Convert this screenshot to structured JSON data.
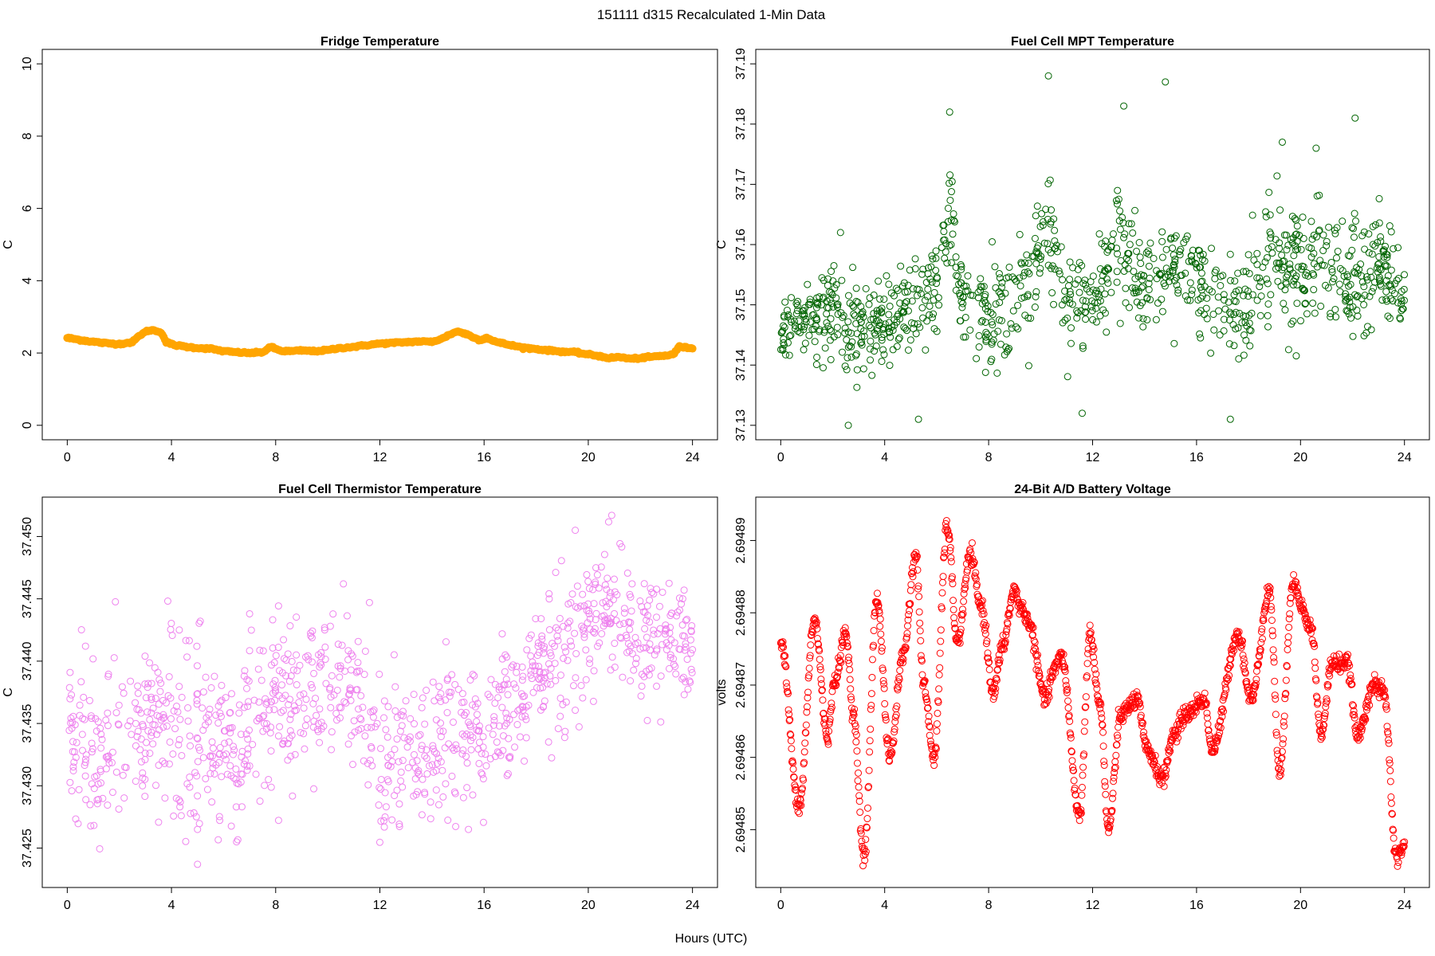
{
  "figure_title": "151111   d315   Recalculated 1-Min Data",
  "x_axis_label": "Hours (UTC)",
  "chart_data": [
    {
      "id": "fridge",
      "type": "scatter",
      "title": "Fridge Temperature",
      "xlabel": "",
      "ylabel": "C",
      "color": "#ffa500",
      "marker": "filled",
      "xlim": [
        0,
        24
      ],
      "ylim": [
        0,
        10
      ],
      "xticks": [
        0,
        4,
        8,
        12,
        16,
        20,
        24
      ],
      "yticks": [
        0,
        2,
        4,
        6,
        8,
        10
      ],
      "ytick_labels": [
        "0",
        "2",
        "4",
        "6",
        "8",
        "10"
      ],
      "trace": {
        "x": [
          0,
          0.5,
          1,
          1.5,
          2,
          2.5,
          2.8,
          3.1,
          3.3,
          3.6,
          3.8,
          4.1,
          4.6,
          5,
          5.5,
          6,
          6.5,
          7,
          7.5,
          7.8,
          8.2,
          8.6,
          9,
          9.5,
          10,
          10.5,
          11,
          11.5,
          12,
          12.5,
          13,
          13.5,
          14,
          14.4,
          14.7,
          15,
          15.4,
          15.8,
          16.1,
          16.5,
          17,
          17.5,
          18,
          18.5,
          19,
          19.5,
          20,
          20.4,
          20.8,
          21.2,
          21.6,
          22,
          22.5,
          23,
          23.3,
          23.5,
          23.7,
          24
        ],
        "y": [
          2.42,
          2.36,
          2.31,
          2.27,
          2.25,
          2.3,
          2.5,
          2.62,
          2.63,
          2.58,
          2.3,
          2.22,
          2.17,
          2.14,
          2.12,
          2.05,
          2.02,
          2.0,
          2.02,
          2.17,
          2.06,
          2.05,
          2.07,
          2.05,
          2.08,
          2.14,
          2.17,
          2.22,
          2.26,
          2.28,
          2.3,
          2.32,
          2.31,
          2.4,
          2.52,
          2.6,
          2.5,
          2.36,
          2.42,
          2.3,
          2.22,
          2.15,
          2.11,
          2.07,
          2.04,
          2.02,
          1.96,
          1.92,
          1.86,
          1.89,
          1.84,
          1.86,
          1.9,
          1.93,
          1.98,
          2.19,
          2.15,
          2.14
        ]
      }
    },
    {
      "id": "mpt",
      "type": "scatter",
      "title": "Fuel Cell MPT Temperature",
      "xlabel": "",
      "ylabel": "C",
      "color": "#006400",
      "marker": "open-circle",
      "xlim": [
        0,
        24
      ],
      "ylim": [
        37.13,
        37.19
      ],
      "xticks": [
        0,
        4,
        8,
        12,
        16,
        20,
        24
      ],
      "yticks": [
        37.13,
        37.14,
        37.15,
        37.16,
        37.17,
        37.18,
        37.19
      ],
      "ytick_labels": [
        "37.13",
        "37.14",
        "37.15",
        "37.16",
        "37.17",
        "37.18",
        "37.19"
      ],
      "trace": {
        "x": [
          0,
          1,
          2,
          3,
          4,
          5,
          6,
          6.5,
          7,
          8,
          9,
          10,
          10.5,
          11,
          12,
          13,
          14,
          15,
          16,
          17,
          18,
          19,
          20,
          21,
          22,
          23,
          24
        ],
        "y": [
          37.146,
          37.148,
          37.149,
          37.145,
          37.147,
          37.15,
          37.153,
          37.165,
          37.15,
          37.147,
          37.15,
          37.162,
          37.158,
          37.149,
          37.151,
          37.16,
          37.153,
          37.157,
          37.154,
          37.15,
          37.15,
          37.158,
          37.155,
          37.158,
          37.152,
          37.157,
          37.15
        ],
        "spread": [
          0.005,
          0.005,
          0.006,
          0.007,
          0.006,
          0.007,
          0.006,
          0.008,
          0.005,
          0.006,
          0.007,
          0.008,
          0.007,
          0.006,
          0.006,
          0.007,
          0.005,
          0.006,
          0.006,
          0.007,
          0.008,
          0.008,
          0.007,
          0.007,
          0.008,
          0.007,
          0.006
        ],
        "outliers": [
          [
            6.5,
            37.182
          ],
          [
            10.3,
            37.188
          ],
          [
            13.2,
            37.183
          ],
          [
            14.8,
            37.187
          ],
          [
            22.1,
            37.181
          ],
          [
            2.6,
            37.13
          ],
          [
            17.3,
            37.131
          ],
          [
            5.3,
            37.131
          ],
          [
            11.6,
            37.132
          ],
          [
            2.3,
            37.162
          ],
          [
            19.3,
            37.177
          ],
          [
            20.6,
            37.176
          ]
        ]
      }
    },
    {
      "id": "thermistor",
      "type": "scatter",
      "title": "Fuel Cell Thermistor Temperature",
      "xlabel": "",
      "ylabel": "C",
      "color": "#ee82ee",
      "marker": "open-circle",
      "xlim": [
        0,
        24
      ],
      "ylim": [
        37.423,
        37.452
      ],
      "xticks": [
        0,
        4,
        8,
        12,
        16,
        20,
        24
      ],
      "yticks": [
        37.425,
        37.43,
        37.435,
        37.44,
        37.445,
        37.45
      ],
      "ytick_labels": [
        "37.425",
        "37.430",
        "37.435",
        "37.440",
        "37.445",
        "37.450"
      ],
      "trace": {
        "x": [
          0,
          1,
          2,
          3,
          4,
          5,
          6,
          6.5,
          7,
          8,
          9,
          10,
          11,
          12,
          13,
          14,
          15,
          16,
          17,
          18,
          19,
          20,
          21,
          22,
          23,
          24
        ],
        "y": [
          37.434,
          37.432,
          37.434,
          37.435,
          37.435,
          37.433,
          37.435,
          37.43,
          37.436,
          37.437,
          37.437,
          37.439,
          37.438,
          37.432,
          37.433,
          37.433,
          37.434,
          37.434,
          37.436,
          37.44,
          37.44,
          37.443,
          37.444,
          37.442,
          37.441,
          37.442
        ],
        "spread": [
          0.004,
          0.005,
          0.005,
          0.005,
          0.006,
          0.006,
          0.005,
          0.005,
          0.005,
          0.004,
          0.004,
          0.004,
          0.004,
          0.005,
          0.004,
          0.004,
          0.005,
          0.004,
          0.004,
          0.004,
          0.005,
          0.004,
          0.004,
          0.004,
          0.004,
          0.004
        ],
        "outliers": [
          [
            5.0,
            37.4237
          ],
          [
            5.0,
            37.4265
          ],
          [
            6.5,
            37.4255
          ],
          [
            15.4,
            37.4265
          ],
          [
            12.2,
            37.4275
          ],
          [
            20.9,
            37.4517
          ],
          [
            19.5,
            37.4505
          ],
          [
            10.6,
            37.4462
          ],
          [
            11.6,
            37.4447
          ],
          [
            7.0,
            37.4438
          ],
          [
            4.3,
            37.4425
          ],
          [
            0.7,
            37.4412
          ]
        ]
      }
    },
    {
      "id": "battery",
      "type": "scatter",
      "title": "24-Bit A/D Battery Voltage",
      "xlabel": "",
      "ylabel": "volts",
      "color": "#ff0000",
      "marker": "open-circle",
      "xlim": [
        0,
        24
      ],
      "ylim": [
        2.694844,
        2.694894
      ],
      "xticks": [
        0,
        4,
        8,
        12,
        16,
        20,
        24
      ],
      "yticks": [
        2.69485,
        2.69486,
        2.69487,
        2.69488,
        2.69489
      ],
      "ytick_labels": [
        "2.69485",
        "2.69486",
        "2.69487",
        "2.69488",
        "2.69489"
      ],
      "trace": {
        "x": [
          0,
          0.7,
          1.3,
          1.8,
          2.1,
          2.5,
          2.8,
          3.2,
          3.7,
          4.2,
          4.7,
          5.2,
          5.5,
          5.9,
          6.4,
          6.8,
          7.3,
          7.7,
          8.2,
          8.5,
          9.0,
          9.2,
          9.5,
          10.2,
          10.5,
          10.8,
          11.5,
          11.9,
          12.3,
          12.6,
          13.1,
          13.7,
          14.1,
          14.7,
          15.1,
          15.6,
          16.3,
          16.6,
          17.6,
          18.1,
          18.8,
          19.2,
          19.7,
          20.4,
          20.8,
          21.2,
          21.8,
          22.2,
          22.8,
          23.2,
          23.7,
          24
        ],
        "y": [
          2.694876,
          2.694853,
          2.694879,
          2.694863,
          2.694871,
          2.694877,
          2.694866,
          2.694846,
          2.694882,
          2.69486,
          2.694874,
          2.694888,
          2.69487,
          2.69486,
          2.694892,
          2.694876,
          2.694888,
          2.694881,
          2.694869,
          2.694875,
          2.694883,
          2.694881,
          2.694879,
          2.694868,
          2.694872,
          2.694874,
          2.694852,
          2.694877,
          2.694867,
          2.69485,
          2.694866,
          2.694868,
          2.694861,
          2.694857,
          2.694863,
          2.694866,
          2.694868,
          2.694861,
          2.694877,
          2.694868,
          2.694883,
          2.694858,
          2.694884,
          2.694878,
          2.694863,
          2.694873,
          2.694873,
          2.694863,
          2.69487,
          2.694869,
          2.694846,
          2.694848
        ],
        "spread": 6e-07
      }
    }
  ]
}
